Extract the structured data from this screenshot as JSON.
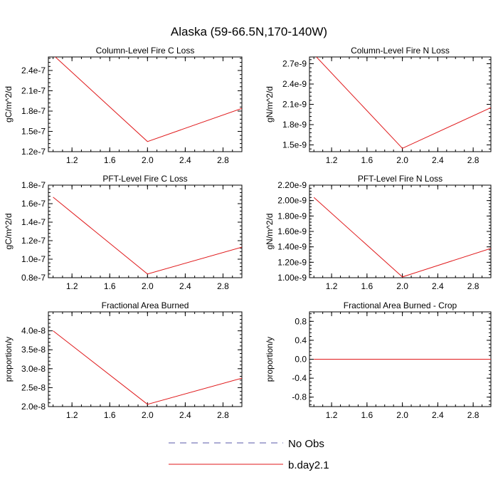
{
  "page_title": "Alaska (59-66.5N,170-140W)",
  "legend": [
    {
      "label": "No Obs",
      "color": "#5a5aa8",
      "dash": true
    },
    {
      "label": "b.day2.1",
      "color": "#e0191b",
      "dash": false
    }
  ],
  "chart_data": [
    {
      "type": "line",
      "title": "Column-Level Fire C Loss",
      "ylabel": "gC/m^2/d",
      "xlim": [
        0.95,
        3.0
      ],
      "ylim": [
        1.2e-07,
        2.6e-07
      ],
      "xticks": [
        "1.2",
        "1.6",
        "2.0",
        "2.4",
        "2.8"
      ],
      "xtick_values": [
        1.2,
        1.6,
        2.0,
        2.4,
        2.8
      ],
      "yticks": [
        "1.2e-7",
        "1.5e-7",
        "1.8e-7",
        "2.1e-7",
        "2.4e-7"
      ],
      "ytick_values": [
        1.2e-07,
        1.5e-07,
        1.8e-07,
        2.1e-07,
        2.4e-07
      ],
      "series": [
        {
          "x": [
            1.0,
            2.0,
            3.0
          ],
          "y": [
            2.63e-07,
            1.35e-07,
            1.84e-07
          ],
          "color": "#e0191b"
        }
      ]
    },
    {
      "type": "line",
      "title": "Column-Level Fire N Loss",
      "ylabel": "gN/m^2/d",
      "xlim": [
        0.95,
        3.0
      ],
      "ylim": [
        1.4e-09,
        2.8e-09
      ],
      "xticks": [
        "1.2",
        "1.6",
        "2.0",
        "2.4",
        "2.8"
      ],
      "xtick_values": [
        1.2,
        1.6,
        2.0,
        2.4,
        2.8
      ],
      "yticks": [
        "1.5e-9",
        "1.8e-9",
        "2.1e-9",
        "2.4e-9",
        "2.7e-9"
      ],
      "ytick_values": [
        1.5e-09,
        1.8e-09,
        2.1e-09,
        2.4e-09,
        2.7e-09
      ],
      "series": [
        {
          "x": [
            1.0,
            2.0,
            3.0
          ],
          "y": [
            2.84e-09,
            1.45e-09,
            2.05e-09
          ],
          "color": "#e0191b"
        }
      ]
    },
    {
      "type": "line",
      "title": "PFT-Level Fire C Loss",
      "ylabel": "gC/m^2/d",
      "xlim": [
        0.95,
        3.0
      ],
      "ylim": [
        8e-08,
        1.8e-07
      ],
      "xticks": [
        "1.2",
        "1.6",
        "2.0",
        "2.4",
        "2.8"
      ],
      "xtick_values": [
        1.2,
        1.6,
        2.0,
        2.4,
        2.8
      ],
      "yticks": [
        "0.8e-7",
        "1.0e-7",
        "1.2e-7",
        "1.4e-7",
        "1.6e-7",
        "1.8e-7"
      ],
      "ytick_values": [
        8e-08,
        1e-07,
        1.2e-07,
        1.4e-07,
        1.6e-07,
        1.8e-07
      ],
      "series": [
        {
          "x": [
            1.0,
            2.0,
            3.0
          ],
          "y": [
            1.67e-07,
            8.4e-08,
            1.13e-07
          ],
          "color": "#e0191b"
        }
      ]
    },
    {
      "type": "line",
      "title": "PFT-Level Fire N Loss",
      "ylabel": "gN/m^2/d",
      "xlim": [
        0.95,
        3.0
      ],
      "ylim": [
        1e-09,
        2.2e-09
      ],
      "xticks": [
        "1.2",
        "1.6",
        "2.0",
        "2.4",
        "2.8"
      ],
      "xtick_values": [
        1.2,
        1.6,
        2.0,
        2.4,
        2.8
      ],
      "yticks": [
        "1.00e-9",
        "1.20e-9",
        "1.40e-9",
        "1.60e-9",
        "1.80e-9",
        "2.00e-9",
        "2.20e-9"
      ],
      "ytick_values": [
        1e-09,
        1.2e-09,
        1.4e-09,
        1.6e-09,
        1.8e-09,
        2e-09,
        2.2e-09
      ],
      "series": [
        {
          "x": [
            1.0,
            2.0,
            3.0
          ],
          "y": [
            2.04e-09,
            1.01e-09,
            1.38e-09
          ],
          "color": "#e0191b"
        }
      ]
    },
    {
      "type": "line",
      "title": "Fractional Area Burned",
      "ylabel": "proportion/y",
      "xlim": [
        0.95,
        3.0
      ],
      "ylim": [
        2e-08,
        4.5e-08
      ],
      "xticks": [
        "1.2",
        "1.6",
        "2.0",
        "2.4",
        "2.8"
      ],
      "xtick_values": [
        1.2,
        1.6,
        2.0,
        2.4,
        2.8
      ],
      "yticks": [
        "2.0e-8",
        "2.5e-8",
        "3.0e-8",
        "3.5e-8",
        "4.0e-8"
      ],
      "ytick_values": [
        2e-08,
        2.5e-08,
        3e-08,
        3.5e-08,
        4e-08
      ],
      "series": [
        {
          "x": [
            1.0,
            2.0,
            3.0
          ],
          "y": [
            4e-08,
            2.06e-08,
            2.75e-08
          ],
          "color": "#e0191b"
        }
      ]
    },
    {
      "type": "line",
      "title": "Fractional Area Burned - Crop",
      "ylabel": "proportion/y",
      "xlim": [
        0.95,
        3.0
      ],
      "ylim": [
        -1.0,
        1.0
      ],
      "xticks": [
        "1.2",
        "1.6",
        "2.0",
        "2.4",
        "2.8"
      ],
      "xtick_values": [
        1.2,
        1.6,
        2.0,
        2.4,
        2.8
      ],
      "yticks": [
        "-0.8",
        "-0.4",
        "0.0",
        "0.4",
        "0.8"
      ],
      "ytick_values": [
        -0.8,
        -0.4,
        0.0,
        0.4,
        0.8
      ],
      "series": [
        {
          "x": [
            1.0,
            2.0,
            3.0
          ],
          "y": [
            0.0,
            0.0,
            0.0
          ],
          "color": "#e0191b"
        }
      ]
    }
  ]
}
